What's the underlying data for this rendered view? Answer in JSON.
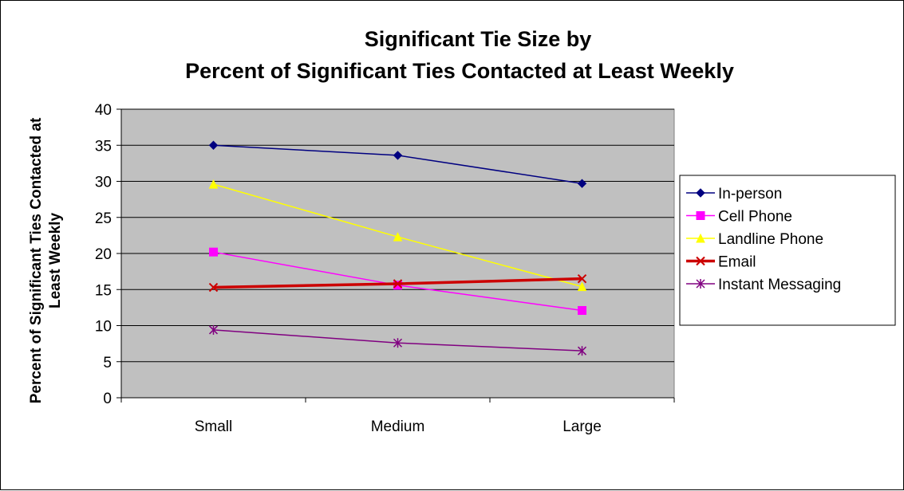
{
  "chart_data": {
    "type": "line",
    "title_line1": "Significant Tie Size by",
    "title_line2": "Percent of Significant Ties Contacted at Least Weekly",
    "ylabel_line1": "Percent of Significant Ties Contacted at",
    "ylabel_line2": "Least Weekly",
    "xlabel": "",
    "categories": [
      "Small",
      "Medium",
      "Large"
    ],
    "ylim": [
      0,
      40
    ],
    "yticks": [
      "0",
      "5",
      "10",
      "15",
      "20",
      "25",
      "30",
      "35",
      "40"
    ],
    "grid": true,
    "legend_position": "right",
    "plot_background": "#c0c0c0",
    "series": [
      {
        "name": "In-person",
        "values": [
          35.0,
          33.6,
          29.7
        ],
        "color": "#000080",
        "marker": "diamond",
        "width": 1.5
      },
      {
        "name": "Cell Phone",
        "values": [
          20.2,
          15.6,
          12.1
        ],
        "color": "#ff00ff",
        "marker": "square",
        "width": 1.5
      },
      {
        "name": "Landline Phone",
        "values": [
          29.6,
          22.3,
          15.4
        ],
        "color": "#ffff00",
        "marker": "triangle",
        "width": 1.5
      },
      {
        "name": "Email",
        "values": [
          15.3,
          15.8,
          16.5
        ],
        "color": "#cc0000",
        "marker": "x",
        "width": 3.5
      },
      {
        "name": "Instant Messaging",
        "values": [
          9.4,
          7.6,
          6.5
        ],
        "color": "#800080",
        "marker": "star",
        "width": 1.5
      }
    ]
  }
}
